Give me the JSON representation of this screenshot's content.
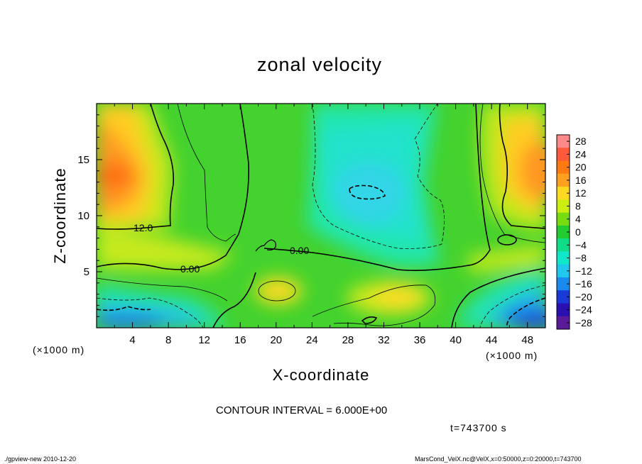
{
  "chart_data": {
    "type": "heatmap",
    "title": "zonal velocity",
    "xlabel": "X-coordinate",
    "ylabel": "Z-coordinate",
    "x_unit": "(×1000 m)",
    "z_unit": "(×1000 m)",
    "xlim": [
      0,
      50
    ],
    "ylim": [
      0,
      20
    ],
    "x_ticks": [
      4,
      8,
      12,
      16,
      20,
      24,
      28,
      32,
      36,
      40,
      44,
      48
    ],
    "y_ticks": [
      5,
      10,
      15
    ],
    "colorbar_ticks": [
      28,
      24,
      20,
      16,
      12,
      8,
      4,
      0,
      -4,
      -8,
      -12,
      -16,
      -20,
      -24,
      -28
    ],
    "colorbar_colors": [
      "#ff8a8a",
      "#ff5a3a",
      "#ff7a10",
      "#ffa020",
      "#ffd820",
      "#ccee10",
      "#77dd10",
      "#22cc30",
      "#10dd88",
      "#10e8cc",
      "#20c8ee",
      "#1a8aee",
      "#1a3ad8",
      "#2a10b0",
      "#5a1a9a"
    ],
    "contour_labels": [
      "12.0",
      "0.00",
      "0.00"
    ],
    "contour_interval": "CONTOUR INTERVAL = 6.000E+00",
    "time": "t=743700 s"
  },
  "footer": {
    "left": "./gpview-new  2010-12-20",
    "right": "MarsCond_VelX.nc@VelX,x=0:50000,z=0:20000,t=743700"
  }
}
